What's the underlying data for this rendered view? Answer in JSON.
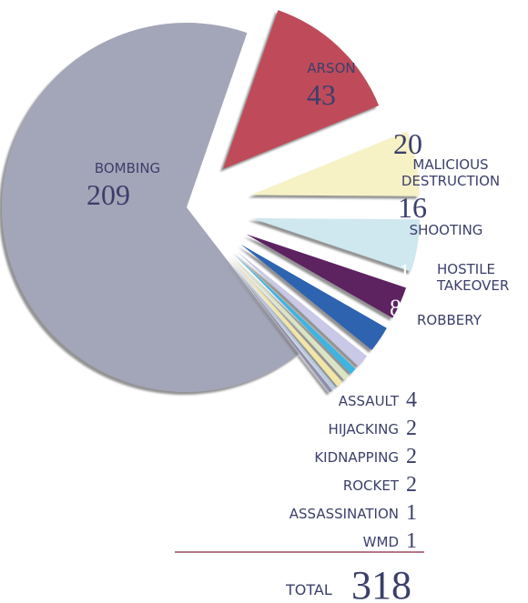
{
  "chart_data": {
    "type": "pie",
    "categories": [
      "BOMBING",
      "ARSON",
      "MALICIOUS DESTRUCTION",
      "SHOOTING",
      "HOSTILE TAKEOVER",
      "ROBBERY",
      "ASSAULT",
      "HIJACKING",
      "KIDNAPPING",
      "ROCKET",
      "ASSASSINATION",
      "WMD"
    ],
    "values": [
      209,
      43,
      20,
      16,
      10,
      8,
      4,
      2,
      2,
      2,
      1,
      1
    ],
    "colors": [
      "#a3a6b8",
      "#bf4b5a",
      "#f6f2c6",
      "#cfe7ee",
      "#5d2061",
      "#2e63b0",
      "#c9c8e6",
      "#3cb4e2",
      "#dbe4c3",
      "#f1e6a7",
      "#b7c9e2",
      "#8e8fb0"
    ],
    "total_label": "TOTAL",
    "total": 318
  }
}
